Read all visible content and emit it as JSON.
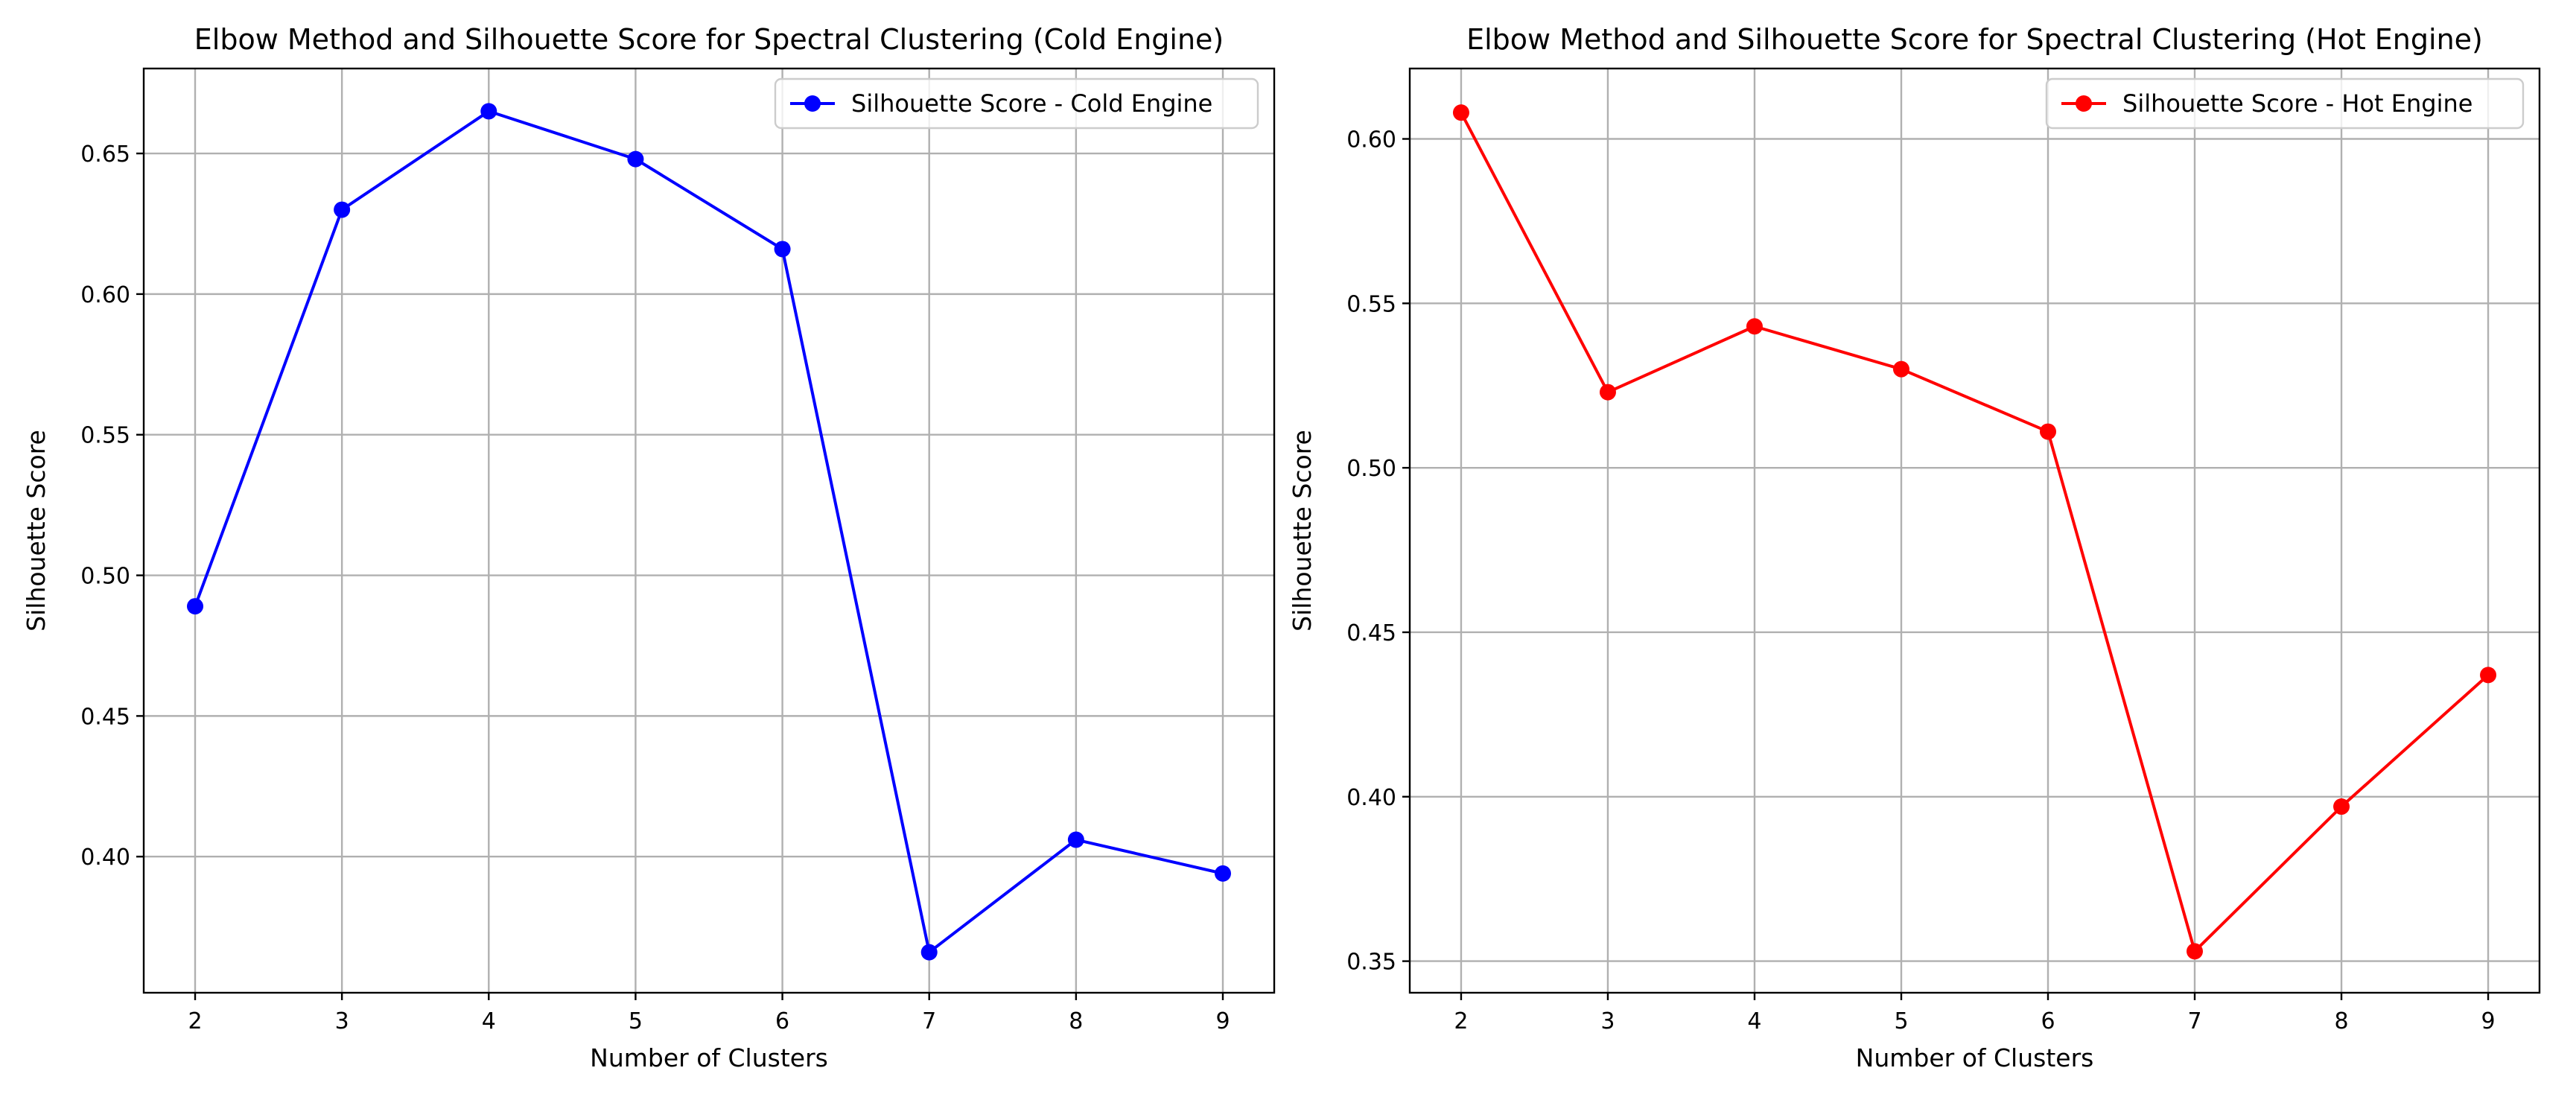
{
  "chart_data": [
    {
      "type": "line",
      "title": "Elbow Method and Silhouette Score for Spectral Clustering (Cold Engine)",
      "xlabel": "Number of Clusters",
      "ylabel": "Silhouette Score",
      "x": [
        2,
        3,
        4,
        5,
        6,
        7,
        8,
        9
      ],
      "xticks": [
        "2",
        "3",
        "4",
        "5",
        "6",
        "7",
        "8",
        "9"
      ],
      "yticks": [
        0.4,
        0.45,
        0.5,
        0.55,
        0.6,
        0.65
      ],
      "ytick_labels": [
        "0.40",
        "0.45",
        "0.50",
        "0.55",
        "0.60",
        "0.65"
      ],
      "xlim": [
        1.65,
        9.35
      ],
      "ylim": [
        0.3516,
        0.6802
      ],
      "grid": true,
      "legend_position": "top-right",
      "series": [
        {
          "name": "Silhouette Score - Cold Engine",
          "color": "#0000ff",
          "values": [
            0.489,
            0.63,
            0.665,
            0.648,
            0.616,
            0.366,
            0.406,
            0.394
          ]
        }
      ]
    },
    {
      "type": "line",
      "title": "Elbow Method and Silhouette Score for Spectral Clustering (Hot Engine)",
      "xlabel": "Number of Clusters",
      "ylabel": "Silhouette Score",
      "x": [
        2,
        3,
        4,
        5,
        6,
        7,
        8,
        9
      ],
      "xticks": [
        "2",
        "3",
        "4",
        "5",
        "6",
        "7",
        "8",
        "9"
      ],
      "yticks": [
        0.35,
        0.4,
        0.45,
        0.5,
        0.55,
        0.6
      ],
      "ytick_labels": [
        "0.35",
        "0.40",
        "0.45",
        "0.50",
        "0.55",
        "0.60"
      ],
      "xlim": [
        1.65,
        9.35
      ],
      "ylim": [
        0.3404,
        0.6214
      ],
      "grid": true,
      "legend_position": "top-right",
      "series": [
        {
          "name": "Silhouette Score - Hot Engine",
          "color": "#ff0000",
          "values": [
            0.608,
            0.523,
            0.543,
            0.53,
            0.511,
            0.353,
            0.397,
            0.437
          ]
        }
      ]
    }
  ]
}
